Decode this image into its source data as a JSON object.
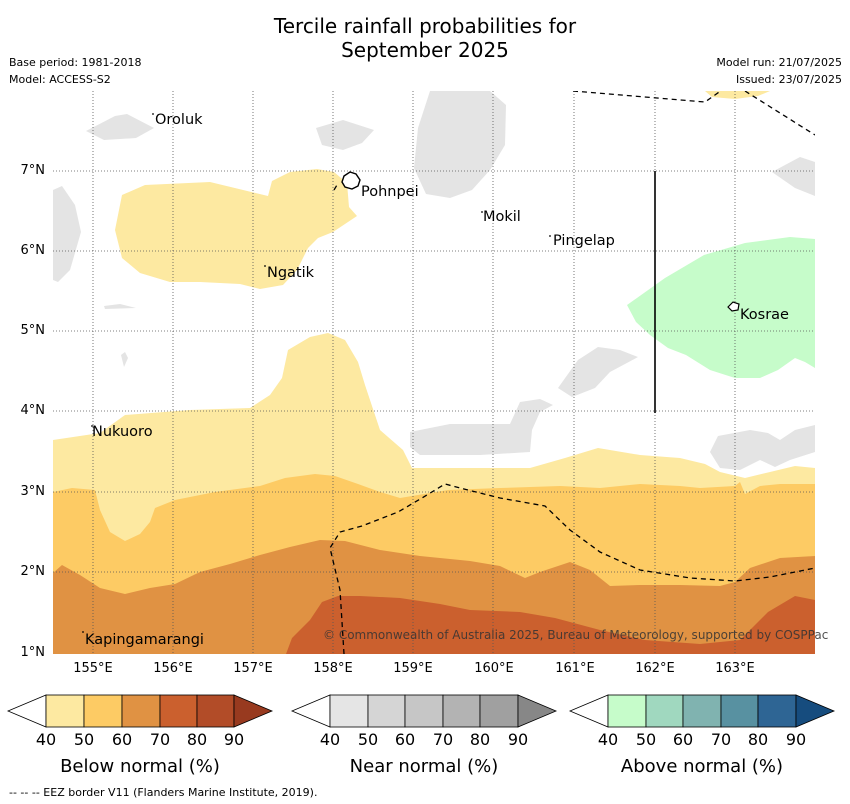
{
  "header": {
    "title_line1": "Tercile rainfall probabilities for",
    "title_line2": "September 2025",
    "base_period": "Base period: 1981-2018",
    "model": "Model: ACCESS-S2",
    "model_run": "Model run: 21/07/2025",
    "issued": "Issued: 23/07/2025"
  },
  "map": {
    "lat_ticks": [
      "7°N",
      "6°N",
      "5°N",
      "4°N",
      "3°N",
      "2°N",
      "1°N"
    ],
    "lon_ticks": [
      "155°E",
      "156°E",
      "157°E",
      "158°E",
      "159°E",
      "160°E",
      "161°E",
      "162°E",
      "163°E"
    ],
    "places": {
      "oroluk": "Oroluk",
      "pohnpei": "Pohnpei",
      "mokil": "Mokil",
      "pingelap": "Pingelap",
      "ngatik": "Ngatik",
      "kosrae": "Kosrae",
      "nukuoro": "Nukuoro",
      "kapingamarangi": "Kapingamarangi"
    },
    "copyright": "© Commonwealth of Australia 2025, Bureau of Meteorology, supported by COSPPac",
    "colors": {
      "below_50": "#fde9a1",
      "below_60": "#fdcb64",
      "below_70": "#e09243",
      "below_80": "#cb602e",
      "near_40": "#e4e4e4",
      "above_40": "#c6fcca"
    }
  },
  "colorbars": {
    "below": {
      "label": "Below normal (%)",
      "ticks": [
        "40",
        "50",
        "60",
        "70",
        "80",
        "90"
      ],
      "colors": [
        "#fde9a1",
        "#fdcb64",
        "#e09243",
        "#cb602e",
        "#b24c28",
        "#983a1f"
      ]
    },
    "near": {
      "label": "Near normal (%)",
      "ticks": [
        "40",
        "50",
        "60",
        "70",
        "80",
        "90"
      ],
      "colors": [
        "#e5e5e5",
        "#d5d5d5",
        "#c6c6c6",
        "#b3b3b3",
        "#a0a0a0",
        "#878787"
      ]
    },
    "above": {
      "label": "Above normal (%)",
      "ticks": [
        "40",
        "50",
        "60",
        "70",
        "80",
        "90"
      ],
      "colors": [
        "#c6fcca",
        "#a0d8bf",
        "#80b3b0",
        "#5891a1",
        "#2e6594",
        "#164c7e"
      ]
    }
  },
  "footer": "-- -- -- EEZ border V11 (Flanders Marine Institute, 2019)."
}
